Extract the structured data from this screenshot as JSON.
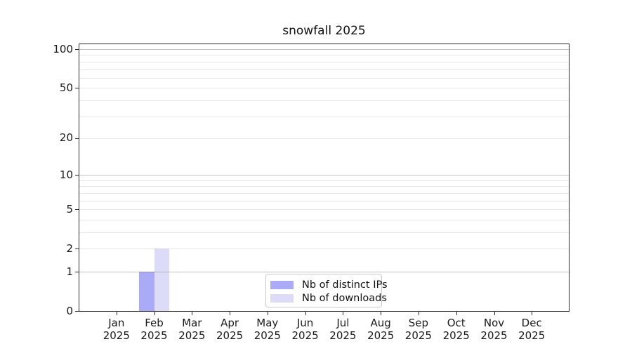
{
  "chart_data": {
    "type": "bar",
    "title": "snowfall 2025",
    "categories": [
      "Jan 2025",
      "Feb 2025",
      "Mar 2025",
      "Apr 2025",
      "May 2025",
      "Jun 2025",
      "Jul 2025",
      "Aug 2025",
      "Sep 2025",
      "Oct 2025",
      "Nov 2025",
      "Dec 2025"
    ],
    "series": [
      {
        "name": "Nb of distinct IPs",
        "color": "#aaaaf7",
        "values": [
          0,
          1,
          0,
          0,
          0,
          0,
          0,
          0,
          0,
          0,
          0,
          0
        ]
      },
      {
        "name": "Nb of downloads",
        "color": "#dcdcf8",
        "values": [
          0,
          2,
          0,
          0,
          0,
          0,
          0,
          0,
          0,
          0,
          0,
          0
        ]
      }
    ],
    "yscale": "log1p",
    "ylim": [
      0,
      110.5
    ],
    "y_ticks": [
      0,
      1,
      2,
      5,
      10,
      20,
      50,
      100
    ],
    "grid": {
      "major_lines": [
        1,
        10,
        100
      ],
      "minor_lines": [
        2,
        3,
        4,
        5,
        6,
        7,
        8,
        9,
        20,
        30,
        40,
        50,
        60,
        70,
        80,
        90
      ],
      "major_color": "rgba(120,120,120,0.45)",
      "minor_color": "rgba(200,200,200,0.45)"
    },
    "legend": {
      "position": "lower center"
    },
    "xlabel": "",
    "ylabel": ""
  },
  "colors": {
    "background": "#ffffff",
    "axis": "#2a2a2a",
    "text": "#1a1a1a"
  }
}
